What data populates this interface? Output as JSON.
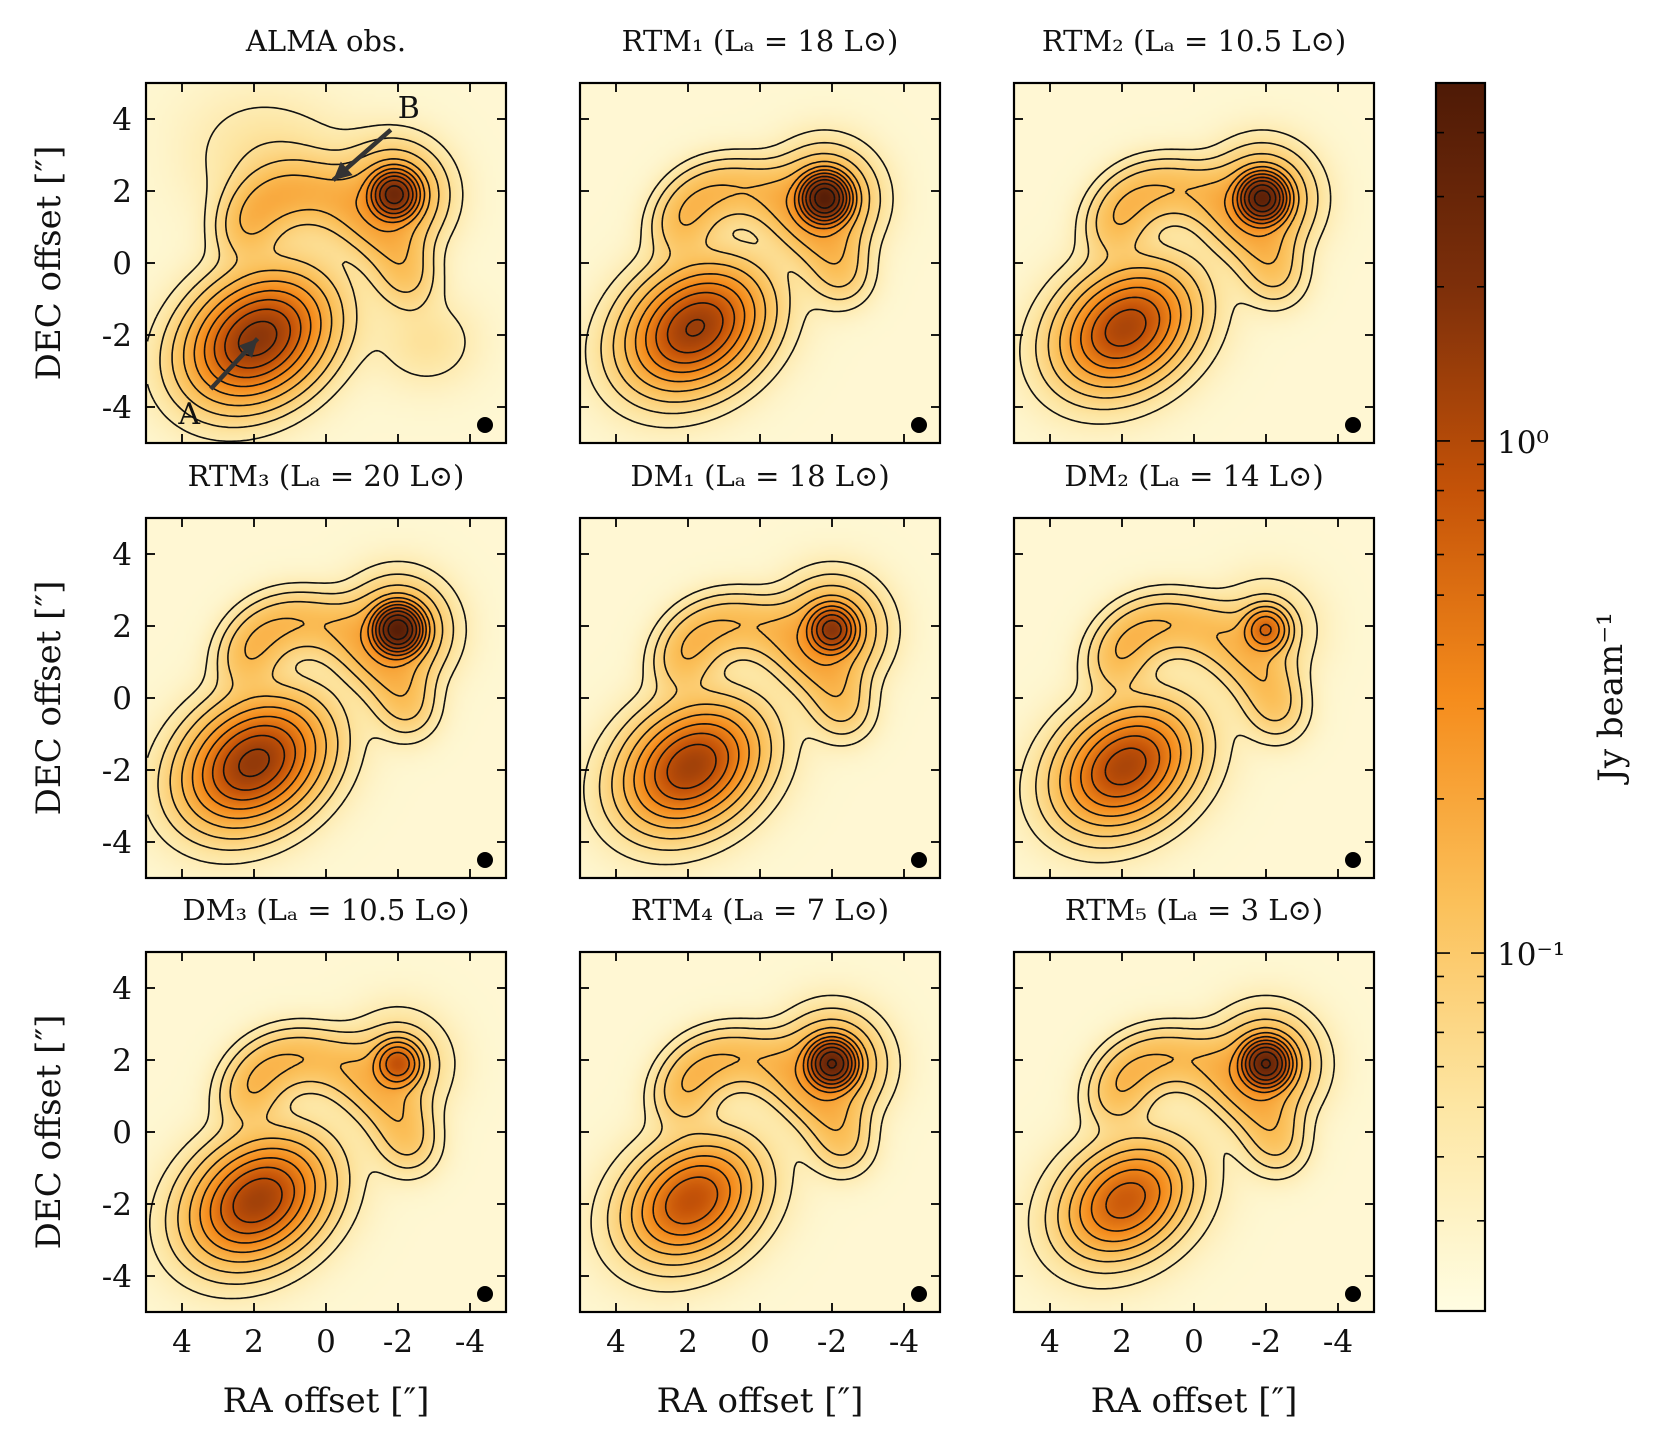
{
  "chart_data": {
    "type": "heatmap",
    "layout": "3x3 panel grid of contour maps",
    "xlabel": "RA offset [″]",
    "ylabel": "DEC offset [″]",
    "xlim": [
      5,
      -5
    ],
    "ylim": [
      -5,
      5
    ],
    "xticks": [
      4,
      2,
      0,
      -2,
      -4
    ],
    "yticks": [
      4,
      2,
      0,
      -2,
      -4
    ],
    "xtick_labels": [
      "4",
      "2",
      "0",
      "-2",
      "-4"
    ],
    "ytick_labels": [
      "4",
      "2",
      "0",
      "-2",
      "-4"
    ],
    "colorbar": {
      "label": "Jy beam⁻¹",
      "scale": "log",
      "range": [
        0.02,
        5.0
      ],
      "ticks": [
        {
          "value": 1.0,
          "label": "10⁰"
        },
        {
          "value": 0.1,
          "label": "10⁻¹"
        }
      ],
      "colors": [
        "#fffde2",
        "#fde6a3",
        "#fbc059",
        "#f58c1c",
        "#c55308",
        "#7d2f0a",
        "#4e1a06"
      ]
    },
    "annotations": [
      {
        "panel": 0,
        "text": "A",
        "x": 3.8,
        "y": -4.2,
        "arrow_from": [
          3.2,
          -3.5
        ],
        "arrow_to": [
          1.9,
          -2.1
        ]
      },
      {
        "panel": 0,
        "text": "B",
        "x": -2.3,
        "y": 4.3,
        "arrow_from": [
          -1.8,
          3.7
        ],
        "arrow_to": [
          -0.2,
          2.3
        ]
      }
    ],
    "panels": [
      {
        "title": "ALMA obs.",
        "source_A": {
          "x": 1.9,
          "y": -2.1,
          "peak": 1.2
        },
        "source_B": {
          "x": -1.9,
          "y": 1.9,
          "peak": 2.4
        },
        "observed": true
      },
      {
        "title": "RTM₁ (Lₐ = 18 L⊙)",
        "source_A": {
          "x": 1.8,
          "y": -1.8,
          "peak": 1.0
        },
        "source_B": {
          "x": -1.8,
          "y": 1.8,
          "peak": 4.0
        }
      },
      {
        "title": "RTM₂ (Lₐ = 10.5 L⊙)",
        "source_A": {
          "x": 1.9,
          "y": -1.8,
          "peak": 0.8
        },
        "source_B": {
          "x": -1.9,
          "y": 1.8,
          "peak": 3.5
        }
      },
      {
        "title": "RTM₃ (Lₐ = 20 L⊙)",
        "source_A": {
          "x": 2.0,
          "y": -1.8,
          "peak": 1.1
        },
        "source_B": {
          "x": -2.0,
          "y": 1.9,
          "peak": 4.0
        }
      },
      {
        "title": "DM₁ (Lₐ = 18 L⊙)",
        "source_A": {
          "x": 1.9,
          "y": -1.9,
          "peak": 0.9
        },
        "source_B": {
          "x": -2.0,
          "y": 1.9,
          "peak": 1.5
        }
      },
      {
        "title": "DM₂ (Lₐ = 14 L⊙)",
        "source_A": {
          "x": 1.9,
          "y": -1.9,
          "peak": 0.8
        },
        "source_B": {
          "x": -2.0,
          "y": 1.9,
          "peak": 0.5
        }
      },
      {
        "title": "DM₃ (Lₐ = 10.5 L⊙)",
        "source_A": {
          "x": 1.9,
          "y": -1.9,
          "peak": 0.9
        },
        "source_B": {
          "x": -2.0,
          "y": 1.9,
          "peak": 0.7
        }
      },
      {
        "title": "RTM₄ (Lₐ = 7 L⊙)",
        "source_A": {
          "x": 1.9,
          "y": -1.9,
          "peak": 0.6
        },
        "source_B": {
          "x": -2.0,
          "y": 1.9,
          "peak": 3.0
        }
      },
      {
        "title": "RTM₅ (Lₐ = 3 L⊙)",
        "source_A": {
          "x": 1.9,
          "y": -1.9,
          "peak": 0.5
        },
        "source_B": {
          "x": -2.0,
          "y": 1.9,
          "peak": 3.0
        }
      }
    ]
  }
}
